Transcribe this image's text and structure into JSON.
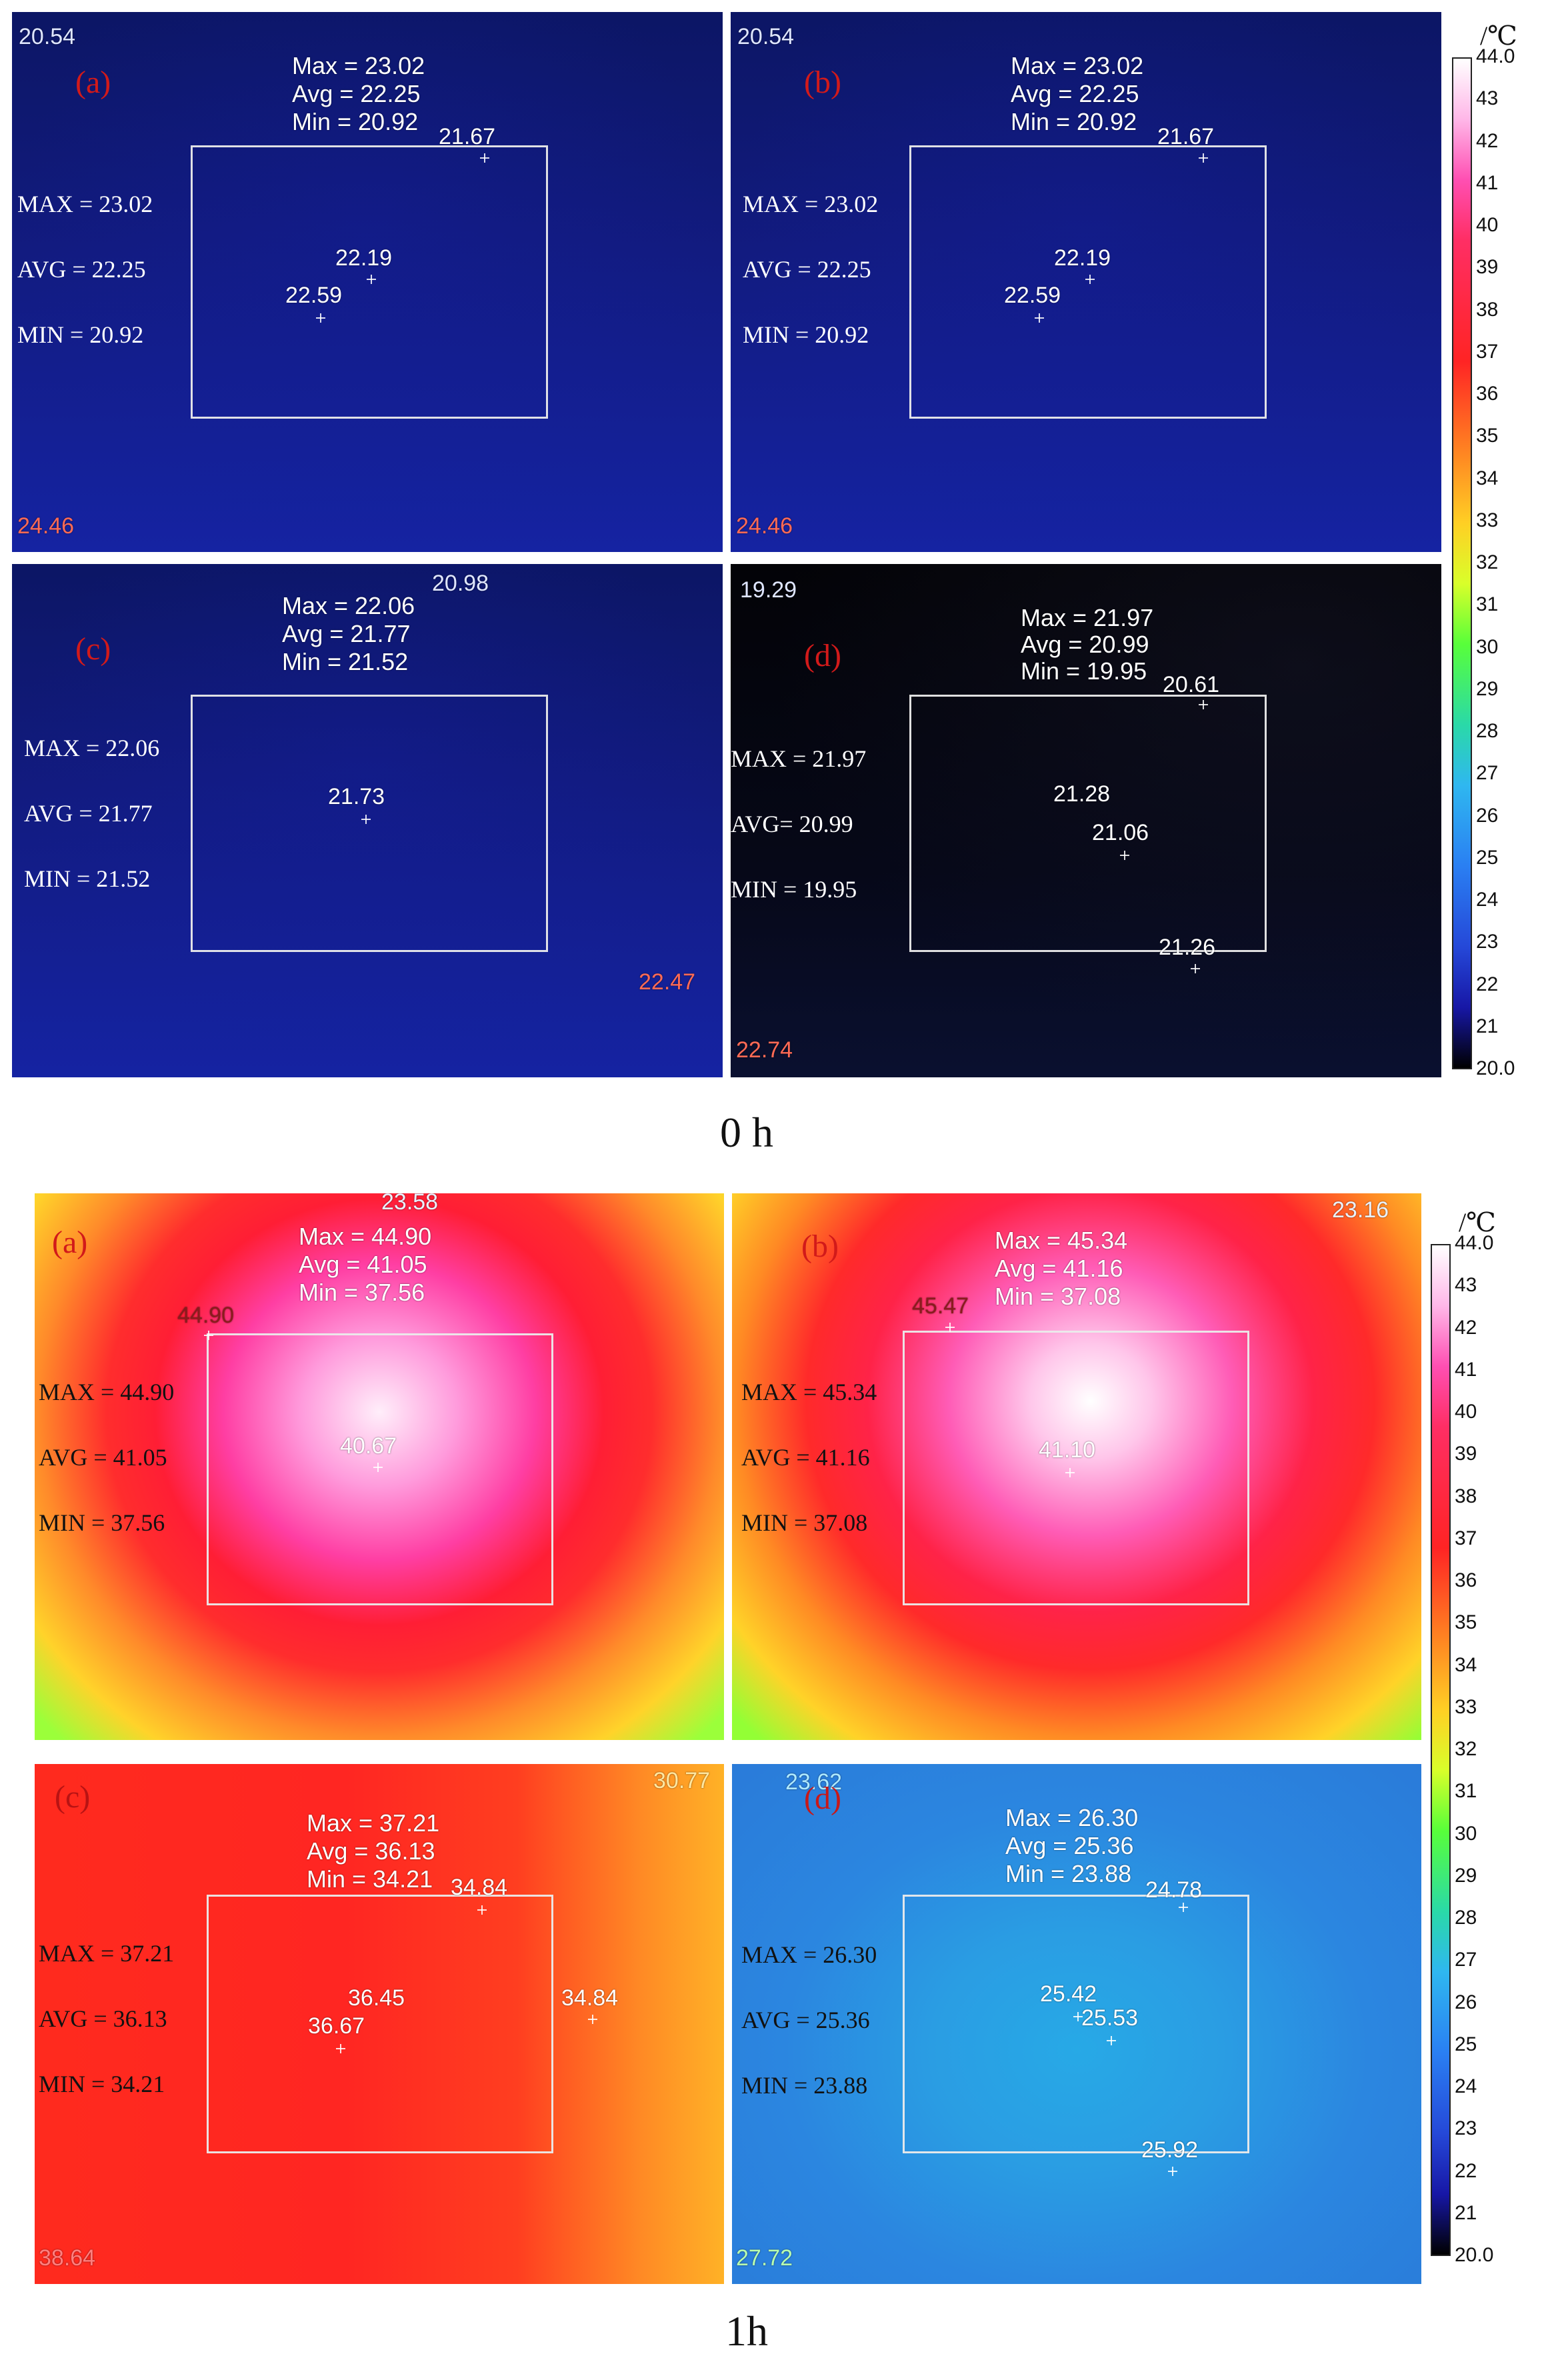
{
  "captions": {
    "top": "0 h",
    "bottom": "1h"
  },
  "legend": {
    "unit": "/℃",
    "ticks": [
      "44.0",
      "43",
      "42",
      "41",
      "40",
      "39",
      "38",
      "37",
      "36",
      "35",
      "34",
      "33",
      "32",
      "31",
      "30",
      "29",
      "28",
      "27",
      "26",
      "25",
      "24",
      "23",
      "22",
      "21",
      "20.0"
    ]
  },
  "h0": {
    "a": {
      "label": "(a)",
      "corner_tl": "20.54",
      "corner_bl": "24.46",
      "stats": {
        "max": "Max = 23.02",
        "avg": "Avg = 22.25",
        "min": "Min = 20.92"
      },
      "side": {
        "max": "MAX = 23.02",
        "avg": "AVG = 22.25",
        "min": "MIN = 20.92"
      },
      "points": [
        "21.67",
        "22.19",
        "22.59"
      ]
    },
    "b": {
      "label": "(b)",
      "corner_tl": "20.54",
      "corner_bl": "24.46",
      "stats": {
        "max": "Max = 23.02",
        "avg": "Avg = 22.25",
        "min": "Min = 20.92"
      },
      "side": {
        "max": "MAX = 23.02",
        "avg": "AVG = 22.25",
        "min": "MIN = 20.92"
      },
      "points": [
        "21.67",
        "22.19",
        "22.59"
      ]
    },
    "c": {
      "label": "(c)",
      "corner_tr": "20.98",
      "corner_br": "22.47",
      "stats": {
        "max": "Max = 22.06",
        "avg": "Avg = 21.77",
        "min": "Min = 21.52"
      },
      "side": {
        "max": "MAX = 22.06",
        "avg": "AVG = 21.77",
        "min": "MIN = 21.52"
      },
      "points": [
        "21.73"
      ]
    },
    "d": {
      "label": "(d)",
      "corner_tl": "19.29",
      "corner_bl": "22.74",
      "stats": {
        "max": "Max = 21.97",
        "avg": "Avg = 20.99",
        "min": "Min = 19.95"
      },
      "side": {
        "max": "MAX = 21.97",
        "avg": "AVG= 20.99",
        "min": "MIN = 19.95"
      },
      "points": [
        "20.61",
        "21.28",
        "21.06",
        "21.26"
      ]
    }
  },
  "h1": {
    "a": {
      "label": "(a)",
      "corner_top": "23.58",
      "stats": {
        "max": "Max = 44.90",
        "avg": "Avg = 41.05",
        "min": "Min = 37.56"
      },
      "side": {
        "max": "MAX = 44.90",
        "avg": "AVG = 41.05",
        "min": "MIN = 37.56"
      },
      "points": [
        "44.90",
        "40.67"
      ]
    },
    "b": {
      "label": "(b)",
      "corner_tr": "23.16",
      "stats": {
        "max": "Max = 45.34",
        "avg": "Avg = 41.16",
        "min": "Min = 37.08"
      },
      "side": {
        "max": "MAX = 45.34",
        "avg": "AVG = 41.16",
        "min": "MIN = 37.08"
      },
      "points": [
        "45.47",
        "41.10"
      ]
    },
    "c": {
      "label": "(c)",
      "corner_tr": "30.77",
      "corner_bl": "38.64",
      "stats": {
        "max": "Max = 37.21",
        "avg": "Avg = 36.13",
        "min": "Min = 34.21"
      },
      "side": {
        "max": "MAX = 37.21",
        "avg": "AVG = 36.13",
        "min": "MIN = 34.21"
      },
      "points": [
        "34.84",
        "36.45",
        "36.67",
        "34.84"
      ]
    },
    "d": {
      "label": "(d)",
      "corner_tl": "23.62",
      "corner_bl": "27.72",
      "stats": {
        "max": "Max = 26.30",
        "avg": "Avg = 25.36",
        "min": "Min = 23.88"
      },
      "side": {
        "max": "MAX = 26.30",
        "avg": "AVG = 25.36",
        "min": "MIN =  23.88"
      },
      "points": [
        "24.78",
        "25.42",
        "25.53",
        "25.92"
      ]
    }
  }
}
